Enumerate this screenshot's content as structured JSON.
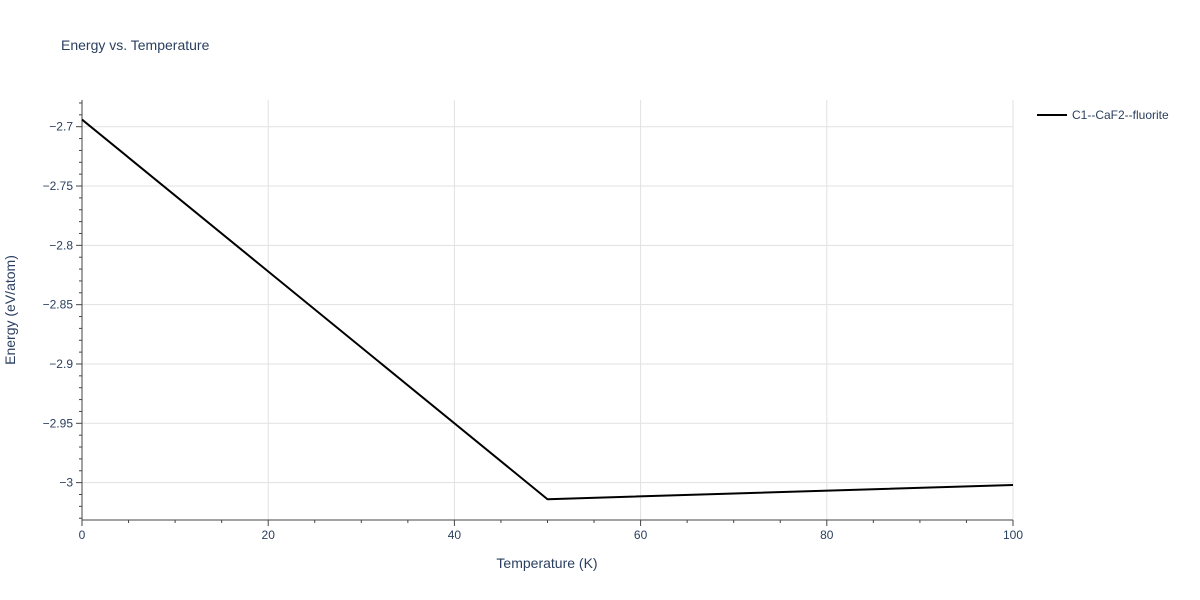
{
  "chart_data": {
    "type": "line",
    "title": "Energy vs. Temperature",
    "xlabel": "Temperature (K)",
    "ylabel": "Energy (eV/atom)",
    "xlim": [
      0,
      100
    ],
    "ylim": [
      -3.0315,
      -2.6775
    ],
    "xticks": [
      0,
      20,
      40,
      60,
      80,
      100
    ],
    "xtick_labels": [
      "0",
      "20",
      "40",
      "60",
      "80",
      "100"
    ],
    "yticks": [
      -2.7,
      -2.75,
      -2.8,
      -2.85,
      -2.9,
      -2.95,
      -3.0
    ],
    "ytick_labels": [
      "−2.7",
      "−2.75",
      "−2.8",
      "−2.85",
      "−2.9",
      "−2.95",
      "−3"
    ],
    "grid": true,
    "legend_position": "top-right",
    "series": [
      {
        "name": "C1--CaF2--fluorite",
        "color": "#000000",
        "x": [
          0,
          50,
          100
        ],
        "y": [
          -2.694,
          -3.014,
          -3.002
        ]
      }
    ]
  }
}
